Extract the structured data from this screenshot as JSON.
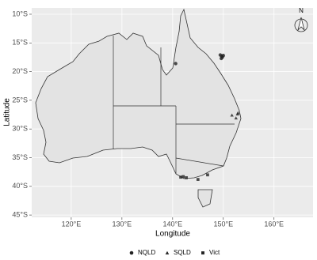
{
  "chart_data": {
    "type": "scatter",
    "x_label": "Longitude",
    "y_label": "Latitude",
    "north_arrow_label": "N",
    "xlim": [
      112.2,
      167.7
    ],
    "ylim": [
      -45.4,
      -8.9
    ],
    "xticks": [
      {
        "value": 120,
        "label": "120°E"
      },
      {
        "value": 130,
        "label": "130°E"
      },
      {
        "value": 140,
        "label": "140°E"
      },
      {
        "value": 150,
        "label": "150°E"
      },
      {
        "value": 160,
        "label": "160°E"
      }
    ],
    "yticks": [
      {
        "value": -10,
        "label": "10°S"
      },
      {
        "value": -15,
        "label": "15°S"
      },
      {
        "value": -20,
        "label": "20°S"
      },
      {
        "value": -25,
        "label": "25°S"
      },
      {
        "value": -30,
        "label": "30°S"
      },
      {
        "value": -35,
        "label": "35°S"
      },
      {
        "value": -40,
        "label": "40°S"
      },
      {
        "value": -45,
        "label": "45°S"
      }
    ],
    "grid": true,
    "legend": "bottom",
    "series": [
      {
        "name": "NQLD",
        "shape": "circle",
        "color": "#222222",
        "x": [
          140.6,
          149.4,
          149.7,
          150.0,
          149.6,
          149.8
        ],
        "values": [
          -18.6,
          -17.1,
          -17.3,
          -17.2,
          -17.7,
          -17.5
        ]
      },
      {
        "name": "SQLD",
        "shape": "triangle",
        "color": "#222222",
        "x": [
          151.7,
          152.8,
          152.5,
          152.9
        ],
        "values": [
          -27.6,
          -27.4,
          -28.1,
          -27.2
        ]
      },
      {
        "name": "Vict",
        "shape": "square",
        "color": "#222222",
        "x": [
          141.6,
          142.1,
          142.7,
          145.0,
          146.9
        ],
        "values": [
          -38.4,
          -38.3,
          -38.5,
          -38.8,
          -38.0
        ]
      }
    ]
  }
}
